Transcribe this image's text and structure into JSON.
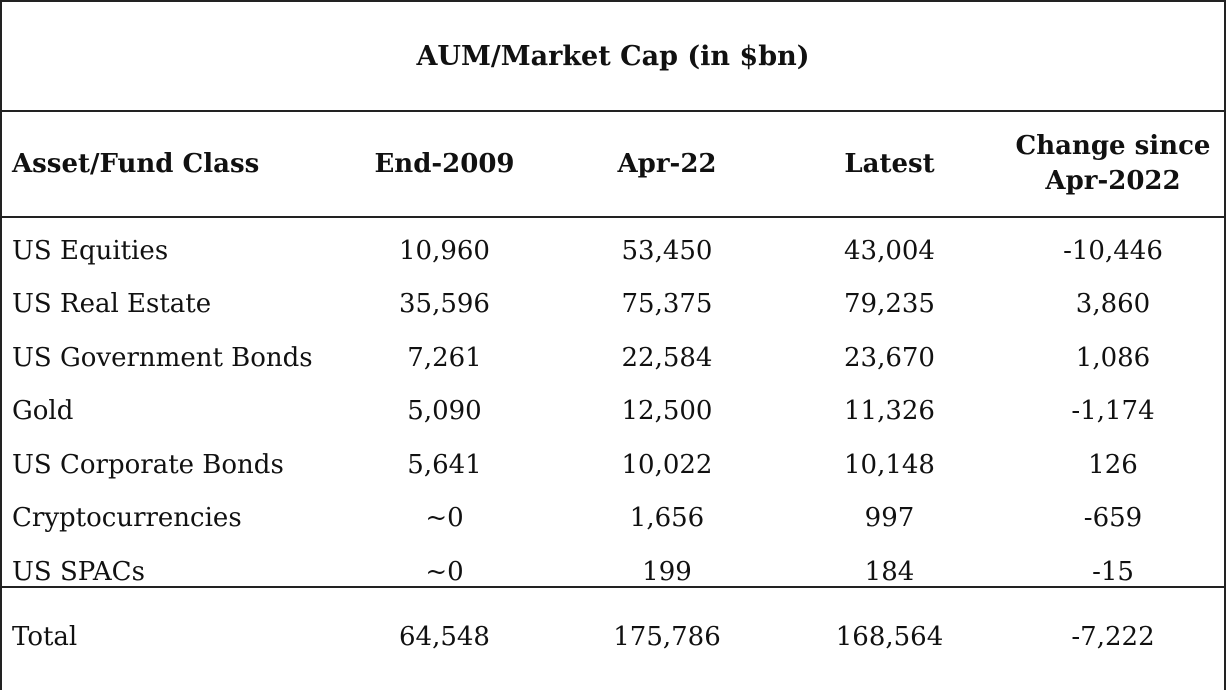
{
  "title": "AUM/Market Cap (in $bn)",
  "headers": [
    "Asset/Fund Class",
    "End-2009",
    "Apr-22",
    "Latest",
    "Change since Apr-2022"
  ],
  "headers_change_lines": [
    "Change since",
    "Apr-2022"
  ],
  "rows": [
    [
      "US Equities",
      "10,960",
      "53,450",
      "43,004",
      "-10,446"
    ],
    [
      "US Real Estate",
      "35,596",
      "75,375",
      "79,235",
      "3,860"
    ],
    [
      "US Government Bonds",
      "7,261",
      "22,584",
      "23,670",
      "1,086"
    ],
    [
      "Gold",
      "5,090",
      "12,500",
      "11,326",
      "-1,174"
    ],
    [
      "US Corporate Bonds",
      "5,641",
      "10,022",
      "10,148",
      "126"
    ],
    [
      "Cryptocurrencies",
      "~0",
      "1,656",
      "997",
      "-659"
    ],
    [
      "US SPACs",
      "~0",
      "199",
      "184",
      "-15"
    ]
  ],
  "total": [
    "Total",
    "64,548",
    "175,786",
    "168,564",
    "-7,222"
  ]
}
